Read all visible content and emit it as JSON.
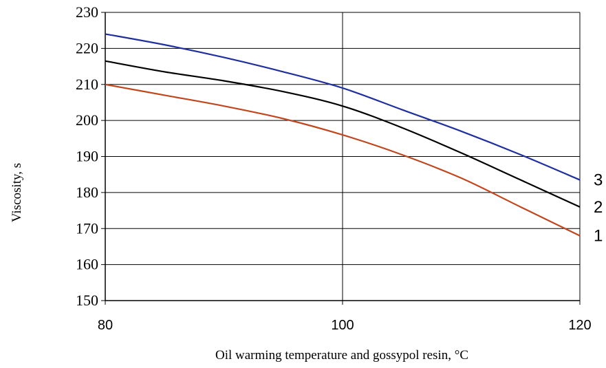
{
  "chart_data": {
    "type": "line",
    "title": "",
    "xlabel": "Oil warming temperature and gossypol resin, °C",
    "ylabel": "Viscosity, s",
    "xlim": [
      80,
      120
    ],
    "ylim": [
      150,
      230
    ],
    "x_ticks": [
      "80",
      "100",
      "120"
    ],
    "y_ticks": [
      "150",
      "160",
      "170",
      "180",
      "190",
      "200",
      "210",
      "220",
      "230"
    ],
    "grid": true,
    "series": [
      {
        "name": "1",
        "color": "#c0461e",
        "points": [
          [
            80,
            210
          ],
          [
            85,
            207
          ],
          [
            90,
            204
          ],
          [
            95,
            200.5
          ],
          [
            100,
            196
          ],
          [
            105,
            190.5
          ],
          [
            110,
            184
          ],
          [
            115,
            176
          ],
          [
            120,
            168
          ]
        ]
      },
      {
        "name": "2",
        "color": "#000000",
        "points": [
          [
            80,
            216.5
          ],
          [
            85,
            213.5
          ],
          [
            90,
            211
          ],
          [
            95,
            208
          ],
          [
            100,
            204
          ],
          [
            105,
            198
          ],
          [
            110,
            191
          ],
          [
            115,
            183.5
          ],
          [
            120,
            176
          ]
        ]
      },
      {
        "name": "3",
        "color": "#1f2f9e",
        "points": [
          [
            80,
            224
          ],
          [
            85,
            221
          ],
          [
            90,
            217.5
          ],
          [
            95,
            213.5
          ],
          [
            100,
            209
          ],
          [
            105,
            203
          ],
          [
            110,
            197
          ],
          [
            115,
            190.5
          ],
          [
            120,
            183.5
          ]
        ]
      }
    ]
  }
}
